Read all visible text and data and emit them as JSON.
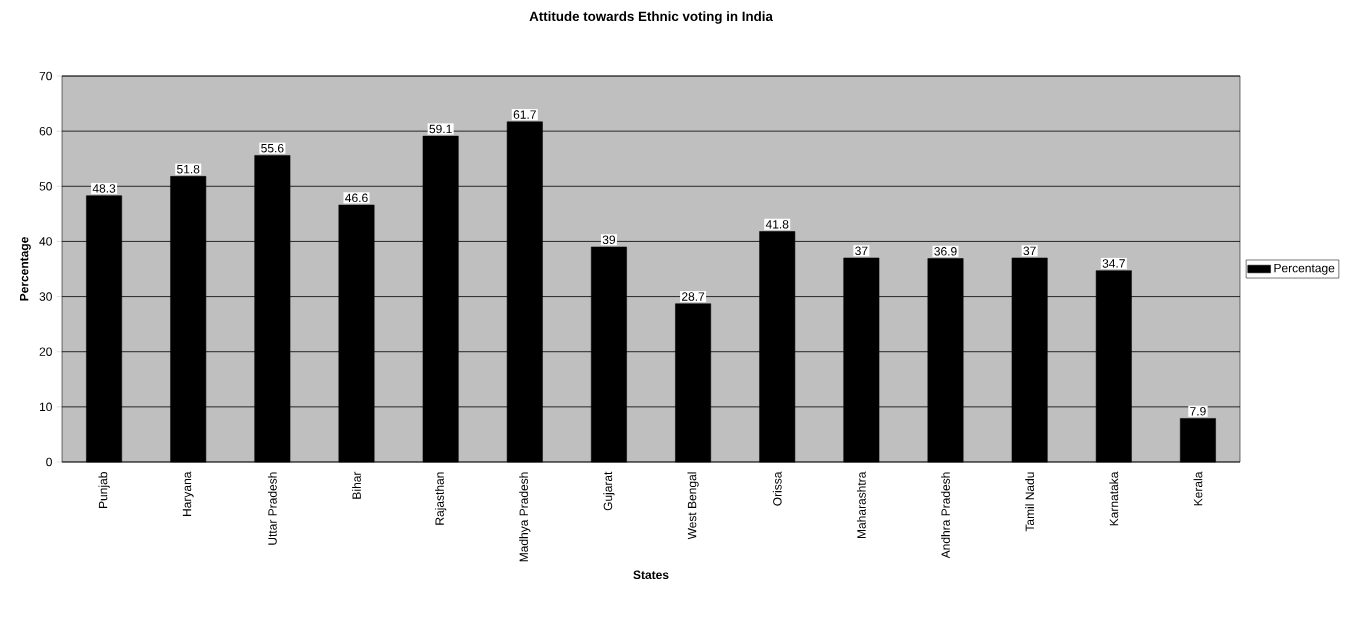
{
  "chart_data": {
    "type": "bar",
    "title": "Attitude towards Ethnic voting in India",
    "xlabel": "States",
    "ylabel": "Percentage",
    "categories": [
      "Punjab",
      "Haryana",
      "Uttar Pradesh",
      "Bihar",
      "Rajasthan",
      "Madhya Pradesh",
      "Gujarat",
      "West Bengal",
      "Orissa",
      "Maharashtra",
      "Andhra Pradesh",
      "Tamil Nadu",
      "Karnataka",
      "Kerala"
    ],
    "series": [
      {
        "name": "Percentage",
        "color": "#000000",
        "values": [
          48.3,
          51.8,
          55.6,
          46.6,
          59.1,
          61.7,
          39,
          28.7,
          41.8,
          37,
          36.9,
          37,
          34.7,
          7.9
        ]
      }
    ],
    "ylim": [
      0,
      70
    ],
    "yticks": [
      0,
      10,
      20,
      30,
      40,
      50,
      60,
      70
    ],
    "grid": "y",
    "legend": "right",
    "data_labels": true
  }
}
